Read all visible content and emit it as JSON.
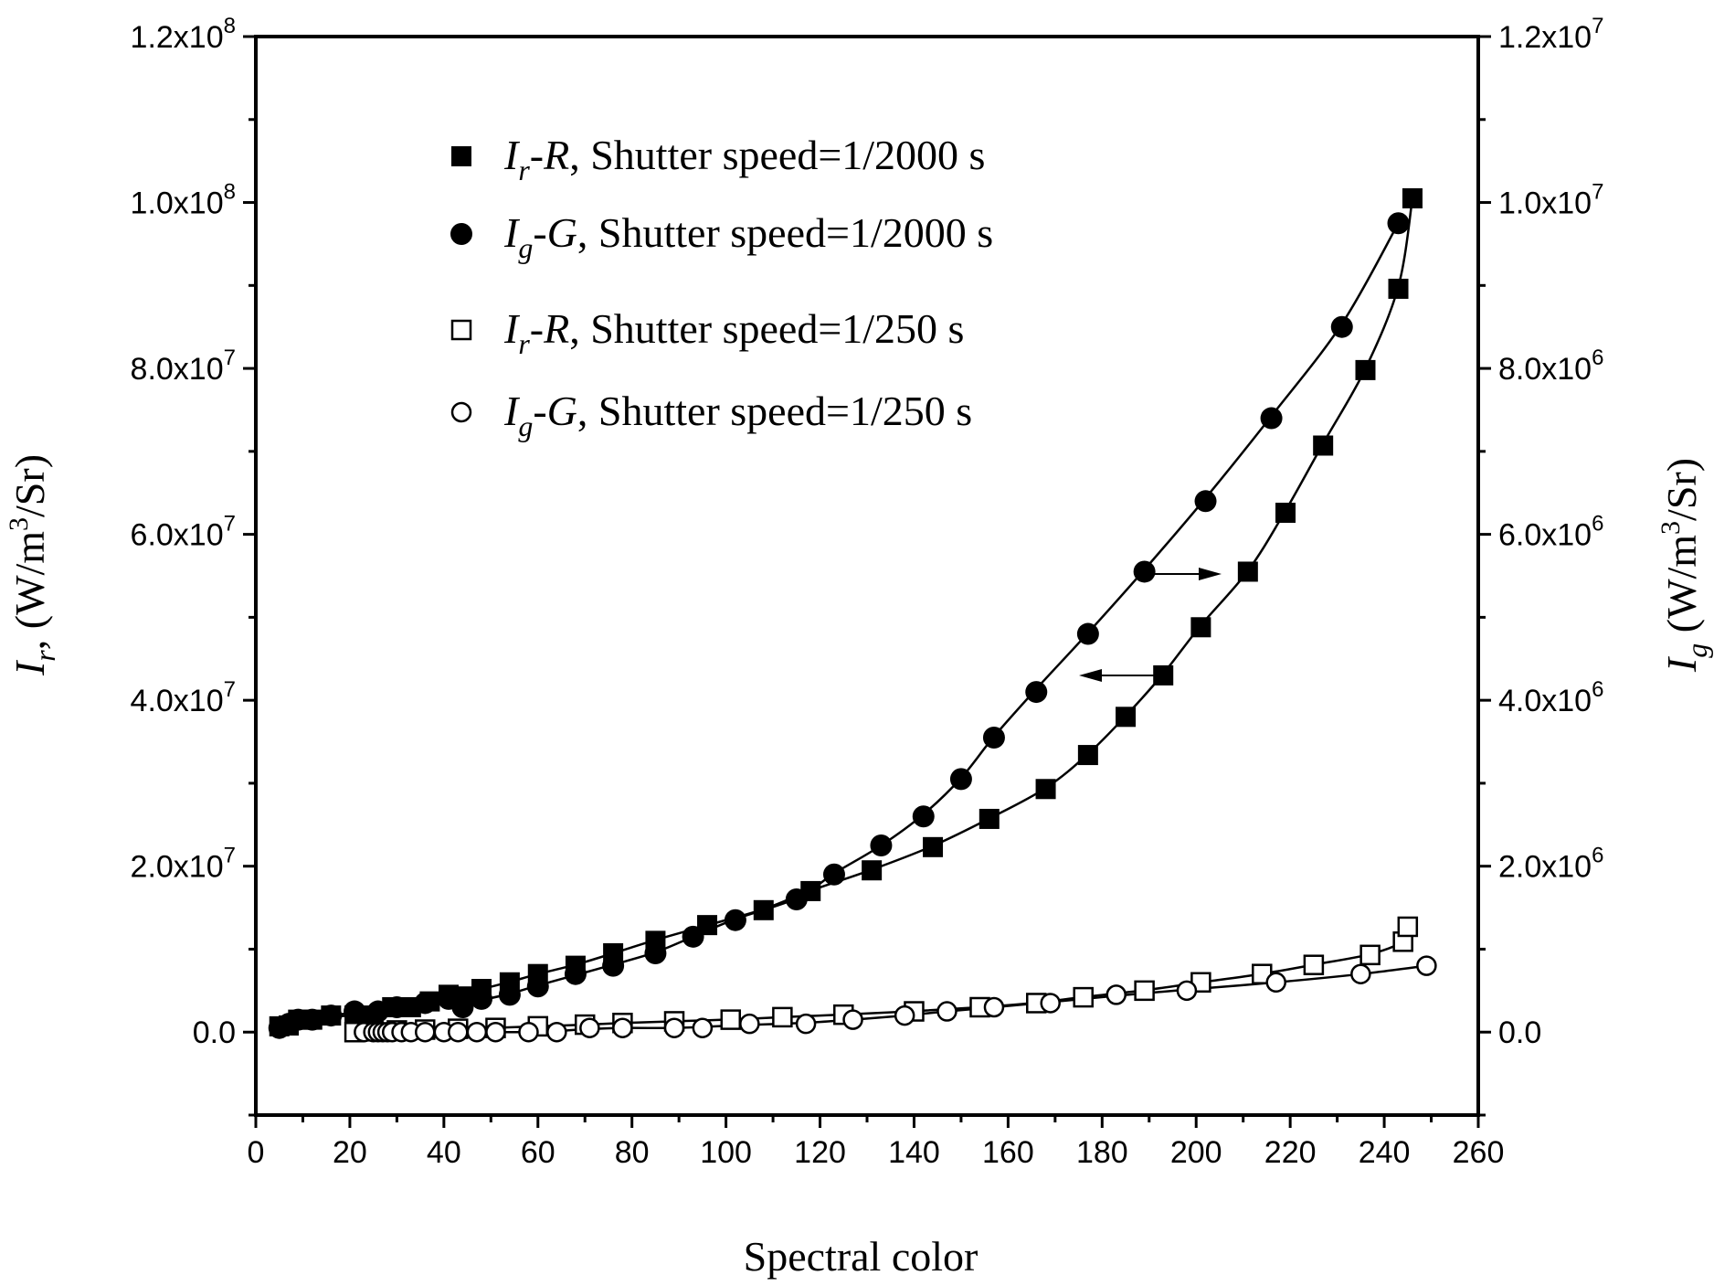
{
  "chart_data": {
    "type": "scatter",
    "xlabel": "Spectral color",
    "ylabel_left": {
      "symbol": "I",
      "sub": "r",
      "unit_pre": ", (W/m",
      "unit_sup": "3",
      "unit_post": "/Sr)"
    },
    "ylabel_right": {
      "symbol": "I",
      "sub": "g",
      "unit_pre": " (W/m",
      "unit_sup": "3",
      "unit_post": "/Sr)"
    },
    "xlim": [
      0,
      260
    ],
    "ylim_left": [
      -10000000,
      120000000
    ],
    "ylim_right": [
      -1000000,
      12000000
    ],
    "x_ticks": [
      0,
      20,
      40,
      60,
      80,
      100,
      120,
      140,
      160,
      180,
      200,
      220,
      240,
      260
    ],
    "x_tick_labels": [
      "0",
      "20",
      "40",
      "60",
      "80",
      "100",
      "120",
      "140",
      "160",
      "180",
      "200",
      "220",
      "240",
      "260"
    ],
    "y_left_ticks": [
      {
        "value": 0,
        "base": "0.0",
        "exp": ""
      },
      {
        "value": 20000000,
        "base": "2.0x10",
        "exp": "7"
      },
      {
        "value": 40000000,
        "base": "4.0x10",
        "exp": "7"
      },
      {
        "value": 60000000,
        "base": "6.0x10",
        "exp": "7"
      },
      {
        "value": 80000000,
        "base": "8.0x10",
        "exp": "7"
      },
      {
        "value": 100000000,
        "base": "1.0x10",
        "exp": "8"
      },
      {
        "value": 120000000,
        "base": "1.2x10",
        "exp": "8"
      }
    ],
    "y_right_ticks": [
      {
        "value": 0,
        "base": "0.0",
        "exp": ""
      },
      {
        "value": 2000000,
        "base": "2.0x10",
        "exp": "6"
      },
      {
        "value": 4000000,
        "base": "4.0x10",
        "exp": "6"
      },
      {
        "value": 6000000,
        "base": "6.0x10",
        "exp": "6"
      },
      {
        "value": 8000000,
        "base": "8.0x10",
        "exp": "6"
      },
      {
        "value": 10000000,
        "base": "1.0x10",
        "exp": "7"
      },
      {
        "value": 12000000,
        "base": "1.2x10",
        "exp": "7"
      }
    ],
    "legend_position": "top-left",
    "legend": [
      {
        "marker": "filled-square",
        "sym": "I",
        "sub": "r",
        "ch": "R",
        "rest": ", Shutter speed=1/2000 s"
      },
      {
        "marker": "filled-circle",
        "sym": "I",
        "sub": "g",
        "ch": "G",
        "rest": ", Shutter speed=1/2000 s"
      },
      {
        "marker": "open-square",
        "sym": "I",
        "sub": "r",
        "ch": "R",
        "rest": ", Shutter speed=1/250 s"
      },
      {
        "marker": "open-circle",
        "sym": "I",
        "sub": "g",
        "ch": "G",
        "rest": ", Shutter speed=1/250 s"
      }
    ],
    "annotations": [
      {
        "type": "arrow",
        "direction": "right",
        "meaning": "circles read on right axis"
      },
      {
        "type": "arrow",
        "direction": "left",
        "meaning": "squares read on left axis"
      }
    ],
    "series": [
      {
        "axis": "left",
        "marker": "filled-square",
        "x": [
          5,
          7,
          9,
          12,
          16,
          21,
          25,
          29,
          33,
          37,
          41,
          45,
          48,
          54,
          60,
          68,
          76,
          85,
          96,
          108,
          118,
          131,
          144,
          156,
          168,
          177,
          185,
          193,
          201,
          211,
          219,
          227,
          236,
          243,
          246
        ],
        "y": [
          700000,
          800000,
          1500000,
          1500000,
          2000000,
          2000000,
          2000000,
          3000000,
          3000000,
          3700000,
          4500000,
          4300000,
          5200000,
          6000000,
          7000000,
          8000000,
          9500000,
          11000000,
          12900000,
          14700000,
          17000000,
          19500000,
          22300000,
          25700000,
          29300000,
          33400000,
          38000000,
          43000000,
          48800000,
          55500000,
          62600000,
          70700000,
          79800000,
          89600000,
          100500000
        ]
      },
      {
        "axis": "right",
        "marker": "filled-circle",
        "x": [
          5,
          7,
          9,
          12,
          16,
          21,
          26,
          30,
          36,
          41,
          44,
          48,
          54,
          60,
          68,
          76,
          85,
          93,
          102,
          115,
          123,
          133,
          142,
          150,
          157,
          166,
          177,
          189,
          202,
          216,
          231,
          243
        ],
        "y": [
          50000,
          100000,
          150000,
          150000,
          200000,
          250000,
          250000,
          300000,
          350000,
          400000,
          300000,
          400000,
          450000,
          550000,
          700000,
          800000,
          950000,
          1150000,
          1350000,
          1600000,
          1900000,
          2250000,
          2600000,
          3050000,
          3550000,
          4100000,
          4800000,
          5550000,
          6400000,
          7400000,
          8500000,
          9750000
        ]
      },
      {
        "axis": "left",
        "marker": "open-square",
        "x": [
          21,
          25,
          30,
          36,
          43,
          51,
          60,
          70,
          78,
          89,
          101,
          112,
          125,
          140,
          154,
          166,
          176,
          189,
          201,
          214,
          225,
          237,
          244,
          245
        ],
        "y": [
          0,
          100000,
          200000,
          300000,
          400000,
          500000,
          700000,
          900000,
          1100000,
          1300000,
          1500000,
          1800000,
          2100000,
          2500000,
          3000000,
          3500000,
          4200000,
          5000000,
          6000000,
          7000000,
          8100000,
          9300000,
          10900000,
          12700000
        ]
      },
      {
        "axis": "right",
        "marker": "open-circle",
        "x": [
          23,
          25,
          26,
          27,
          28,
          29,
          31,
          33,
          36,
          40,
          43,
          47,
          51,
          58,
          64,
          71,
          78,
          89,
          95,
          105,
          117,
          127,
          138,
          147,
          157,
          169,
          183,
          198,
          217,
          235,
          249
        ],
        "y": [
          0,
          0,
          0,
          0,
          0,
          0,
          0,
          0,
          0,
          0,
          0,
          0,
          0,
          0,
          0,
          50000,
          50000,
          50000,
          50000,
          100000,
          100000,
          150000,
          200000,
          250000,
          300000,
          350000,
          450000,
          500000,
          600000,
          700000,
          800000
        ]
      }
    ]
  }
}
